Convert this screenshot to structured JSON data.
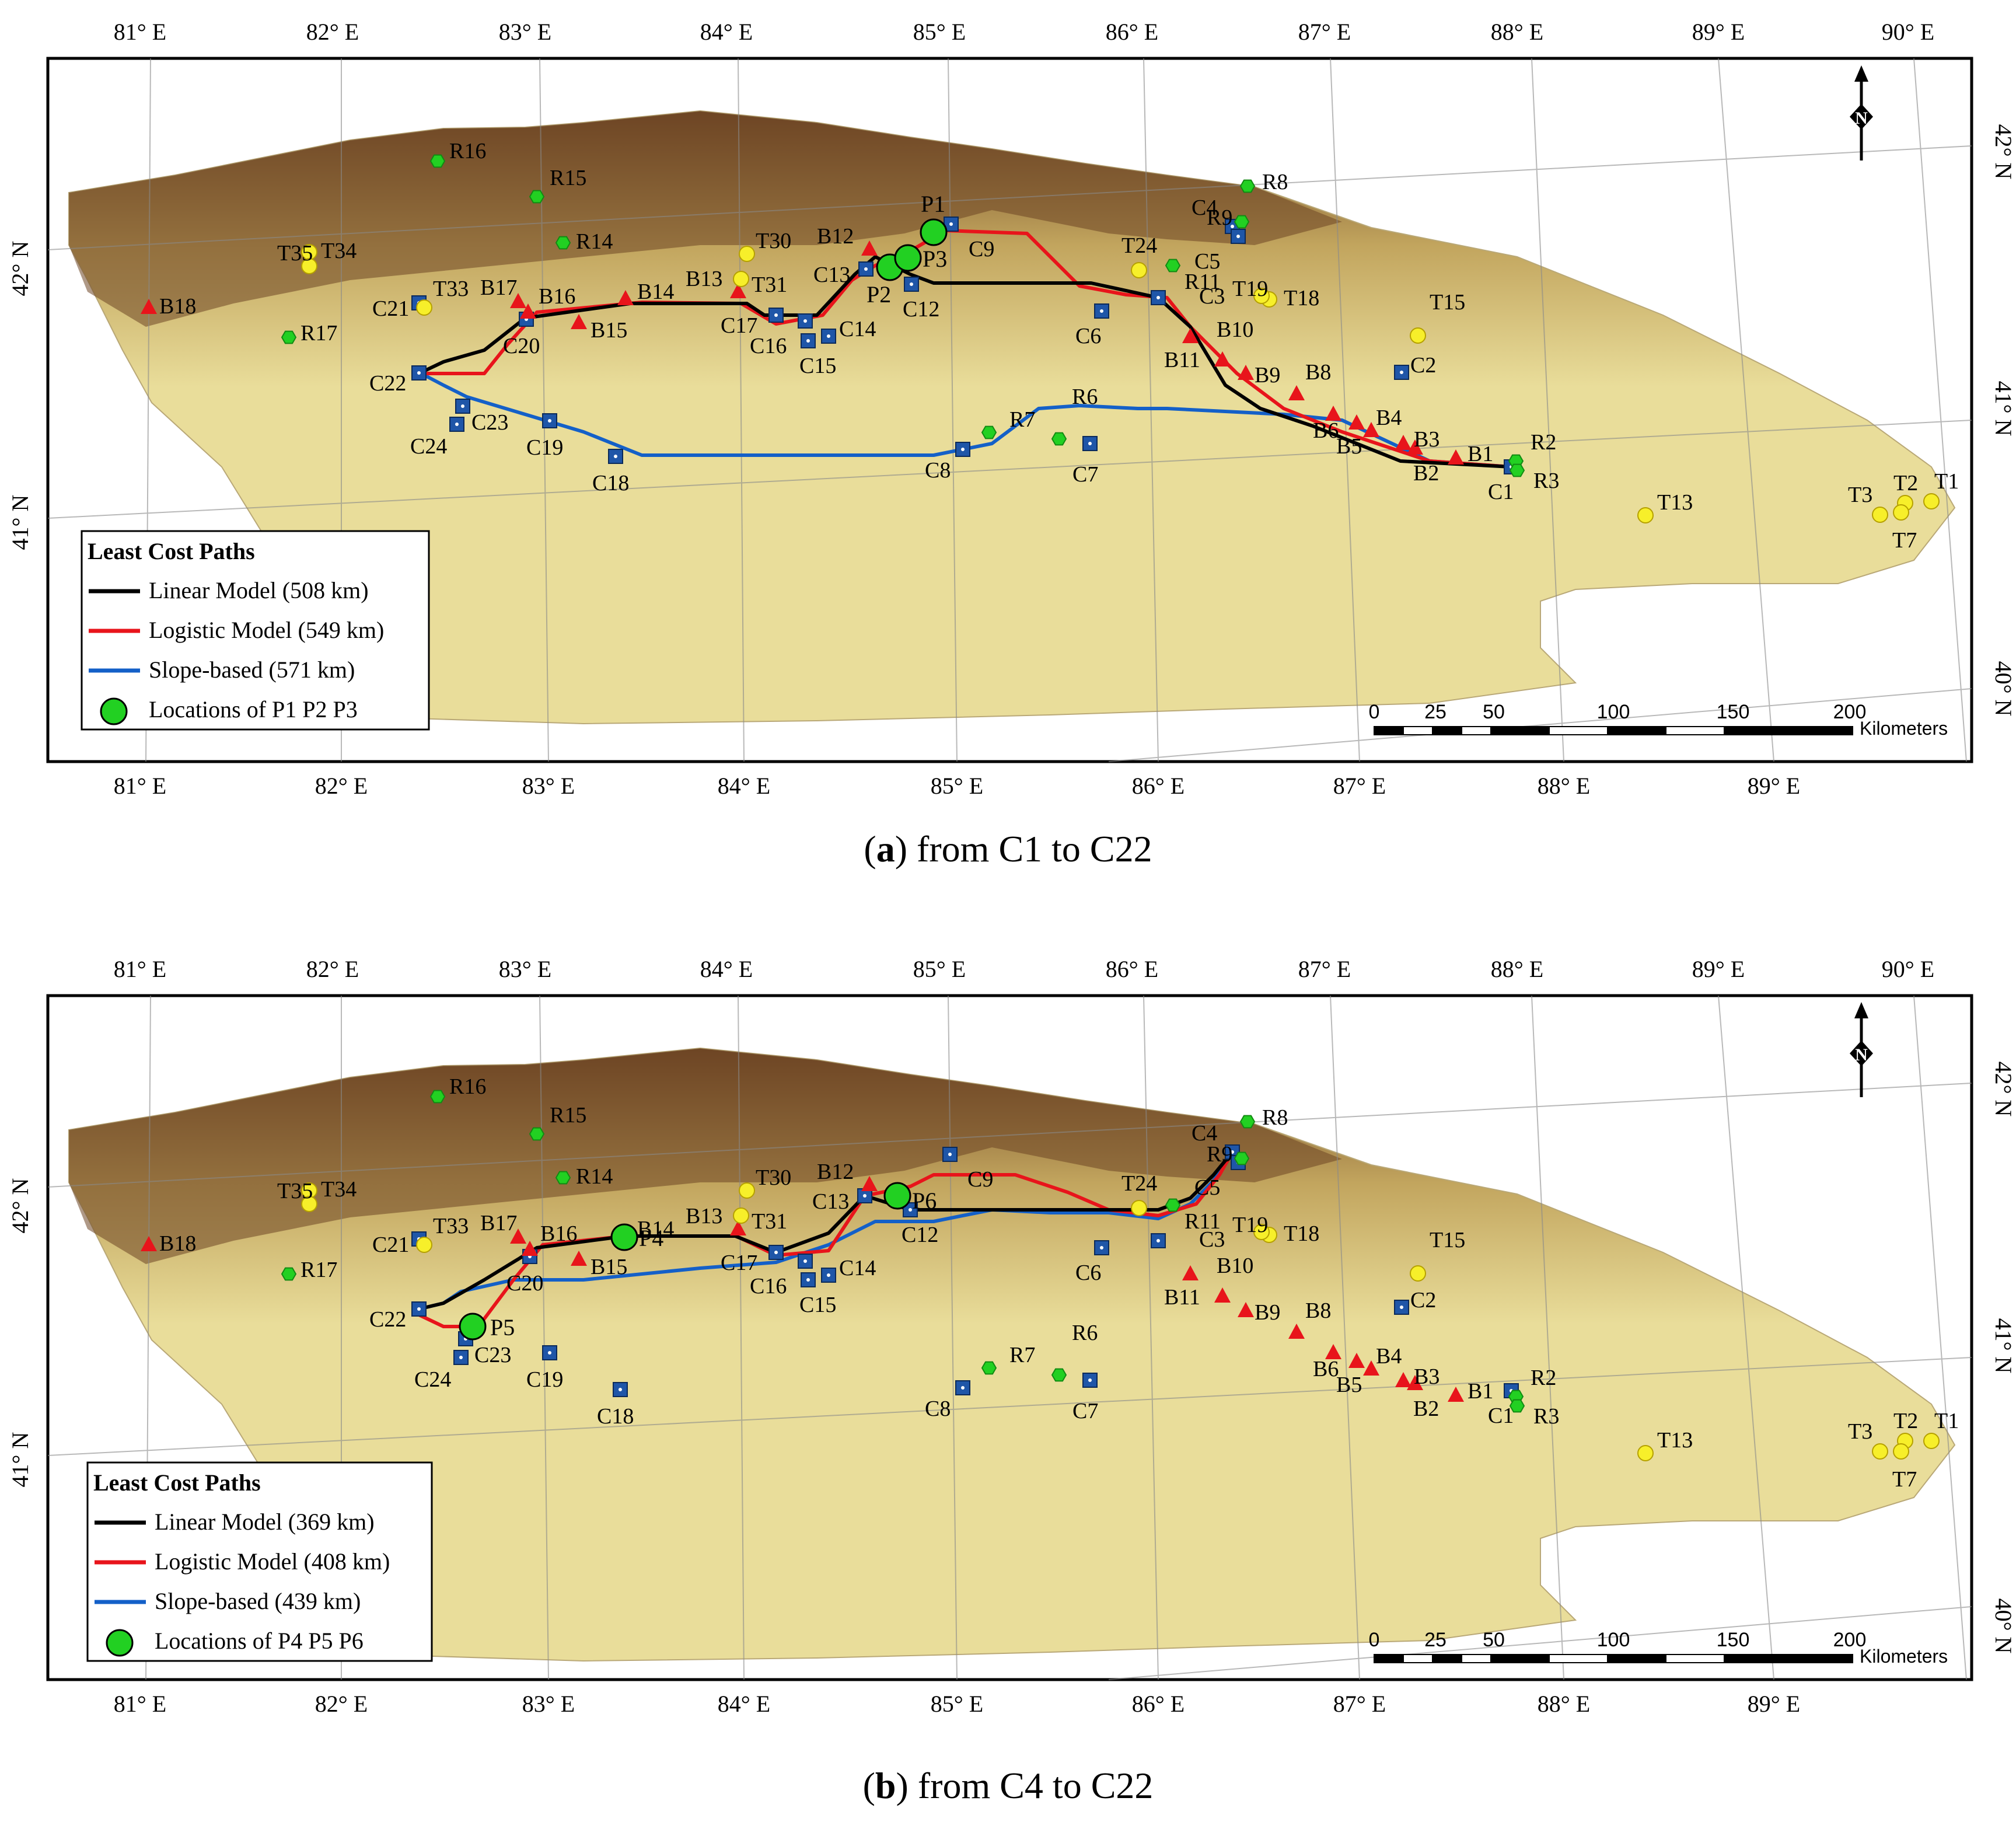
{
  "panels": [
    {
      "id": "a",
      "letter": "a",
      "caption_text": " from C1 to C22",
      "legend": {
        "title": "Least Cost Paths",
        "items": [
          {
            "kind": "line",
            "color": "#000000",
            "label": "Linear Model (508 km)"
          },
          {
            "kind": "line",
            "color": "#e8141b",
            "label": "Logistic Model (549 km)"
          },
          {
            "kind": "line",
            "color": "#1460c8",
            "label": "Slope-based (571 km)"
          },
          {
            "kind": "circle",
            "color": "#22d022",
            "label": "Locations of P1 P2 P3"
          }
        ]
      },
      "points": [
        {
          "id": "P1",
          "label": "P1"
        },
        {
          "id": "P2",
          "label": "P2"
        },
        {
          "id": "P3",
          "label": "P3"
        }
      ],
      "paths": [
        "black",
        "red",
        "blue"
      ]
    },
    {
      "id": "b",
      "letter": "b",
      "caption_text": " from C4 to C22",
      "legend": {
        "title": "Least Cost Paths",
        "items": [
          {
            "kind": "line",
            "color": "#000000",
            "label": "Linear Model (369 km)"
          },
          {
            "kind": "line",
            "color": "#e8141b",
            "label": "Logistic Model (408 km)"
          },
          {
            "kind": "line",
            "color": "#1460c8",
            "label": "Slope-based (439 km)"
          },
          {
            "kind": "circle",
            "color": "#22d022",
            "label": "Locations of P4 P5 P6"
          }
        ]
      },
      "points": [
        {
          "id": "P4",
          "label": "P4"
        },
        {
          "id": "P5",
          "label": "P5"
        },
        {
          "id": "P6",
          "label": "P6"
        }
      ],
      "paths": [
        "black",
        "red",
        "blue"
      ]
    }
  ],
  "grid": {
    "top_lon_labels": [
      "81° E",
      "82° E",
      "83° E",
      "84° E",
      "85° E",
      "86° E",
      "87° E",
      "88° E",
      "89° E",
      "90° E"
    ],
    "bottom_lon_labels": [
      "81° E",
      "82° E",
      "83° E",
      "84° E",
      "85° E",
      "86° E",
      "87° E",
      "88° E",
      "89° E"
    ],
    "left_lat_labels": [
      "42° N",
      "41° N"
    ],
    "right_lat_labels": [
      "42° N",
      "41° N",
      "40° N"
    ]
  },
  "scale_bar": {
    "ticks": [
      "0",
      "25",
      "50",
      "100",
      "150",
      "200"
    ],
    "unit": "Kilometers"
  },
  "north_arrow": {
    "letter": "N"
  },
  "colors": {
    "relief_light": "#e9dd9a",
    "relief_mid": "#c2a55e",
    "relief_dark": "#6e4524",
    "square_site": "#1f56a8",
    "triangle_site": "#e8141b",
    "yellow_site": "#f7ef2a",
    "green_site": "#22d022"
  },
  "sites": {
    "C": [
      "C1",
      "C2",
      "C3",
      "C4",
      "C5",
      "C6",
      "C7",
      "C8",
      "C9",
      "C12",
      "C13",
      "C14",
      "C15",
      "C16",
      "C17",
      "C18",
      "C19",
      "C20",
      "C21",
      "C22",
      "C23",
      "C24"
    ],
    "B": [
      "B1",
      "B2",
      "B3",
      "B4",
      "B5",
      "B6",
      "B8",
      "B9",
      "B10",
      "B11",
      "B12",
      "B13",
      "B14",
      "B15",
      "B16",
      "B17",
      "B18"
    ],
    "T": [
      "T1",
      "T2",
      "T3",
      "T7",
      "T13",
      "T15",
      "T18",
      "T19",
      "T24",
      "T30",
      "T31",
      "T33",
      "T34",
      "T35"
    ],
    "R": [
      "R2",
      "R3",
      "R6",
      "R7",
      "R8",
      "R9",
      "R11",
      "R14",
      "R15",
      "R16",
      "R17"
    ]
  }
}
